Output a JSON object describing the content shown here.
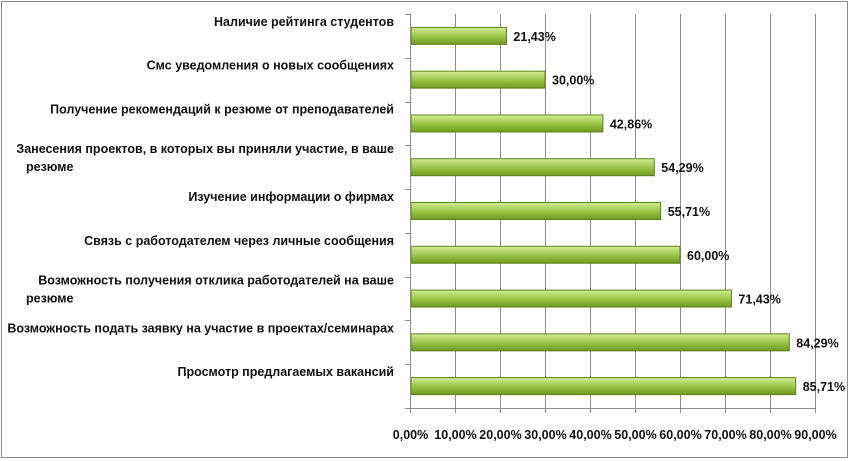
{
  "chart_data": {
    "type": "bar",
    "orientation": "horizontal",
    "categories": [
      [
        "Наличие рейтинга студентов"
      ],
      [
        "Смс уведомления о новых сообщениях"
      ],
      [
        "Получение рекомендаций к резюме от преподавателей"
      ],
      [
        "Занесения проектов, в которых вы приняли участие, в ваше",
        "резюме"
      ],
      [
        "Изучение информации о фирмах"
      ],
      [
        "Связь с работодателем через личные сообщения"
      ],
      [
        "Возможность получения отклика работодателей на ваше",
        "резюме"
      ],
      [
        "Возможность подать заявку на участие в проектах/семинарах"
      ],
      [
        "Просмотр предлагаемых вакансий"
      ]
    ],
    "values": [
      21.43,
      30.0,
      42.86,
      54.29,
      55.71,
      60.0,
      71.43,
      84.29,
      85.71
    ],
    "value_labels": [
      "21,43%",
      "30,00%",
      "42,86%",
      "54,29%",
      "55,71%",
      "60,00%",
      "71,43%",
      "84,29%",
      "85,71%"
    ],
    "xlim": [
      0,
      90
    ],
    "x_ticks": [
      0,
      10,
      20,
      30,
      40,
      50,
      60,
      70,
      80,
      90
    ],
    "x_tick_labels": [
      "0,00%",
      "10,00%",
      "20,00%",
      "30,00%",
      "40,00%",
      "50,00%",
      "60,00%",
      "70,00%",
      "80,00%",
      "90,00%"
    ],
    "title": "",
    "xlabel": "",
    "ylabel": "",
    "grid": "vertical",
    "legend": "none",
    "colors": {
      "bar_light": "#d2ec96",
      "bar_mid": "#9bc84a",
      "bar_dark": "#6e9a22",
      "bar_stroke": "#5d8419",
      "grid": "#8c8c8c",
      "axis": "#8c8c8c"
    }
  }
}
